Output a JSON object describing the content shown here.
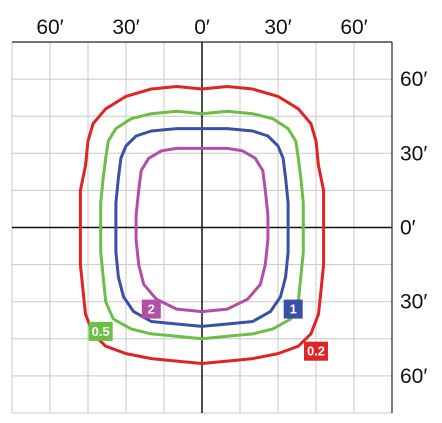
{
  "chart_data": {
    "type": "line",
    "title": "",
    "xlabel": "",
    "ylabel": "",
    "xlim": [
      -75,
      75
    ],
    "ylim": [
      -75,
      75
    ],
    "grid": true,
    "x_ticks": [
      {
        "value": -60,
        "label": "60′"
      },
      {
        "value": -30,
        "label": "30′"
      },
      {
        "value": 0,
        "label": "0′"
      },
      {
        "value": 30,
        "label": "30′"
      },
      {
        "value": 60,
        "label": "60′"
      }
    ],
    "y_ticks": [
      {
        "value": 60,
        "label": "60′"
      },
      {
        "value": 30,
        "label": "30′"
      },
      {
        "value": 0,
        "label": "0′"
      },
      {
        "value": -30,
        "label": "30′"
      },
      {
        "value": -60,
        "label": "60′"
      }
    ],
    "series": [
      {
        "label": "0.2",
        "color": "#e02424",
        "points": [
          [
            0,
            56
          ],
          [
            10,
            57
          ],
          [
            20,
            56
          ],
          [
            30,
            53
          ],
          [
            38,
            48
          ],
          [
            43,
            42
          ],
          [
            45,
            35
          ],
          [
            46,
            25
          ],
          [
            48,
            15
          ],
          [
            48,
            0
          ],
          [
            48,
            -15
          ],
          [
            47,
            -25
          ],
          [
            46,
            -35
          ],
          [
            43,
            -43
          ],
          [
            38,
            -48
          ],
          [
            30,
            -51
          ],
          [
            20,
            -53
          ],
          [
            10,
            -54
          ],
          [
            0,
            -55
          ],
          [
            -10,
            -54
          ],
          [
            -20,
            -53
          ],
          [
            -30,
            -51
          ],
          [
            -38,
            -48
          ],
          [
            -43,
            -43
          ],
          [
            -46,
            -35
          ],
          [
            -47,
            -25
          ],
          [
            -48,
            -15
          ],
          [
            -48,
            0
          ],
          [
            -48,
            15
          ],
          [
            -46,
            25
          ],
          [
            -45,
            35
          ],
          [
            -43,
            42
          ],
          [
            -38,
            48
          ],
          [
            -30,
            53
          ],
          [
            -20,
            56
          ],
          [
            -10,
            57
          ]
        ]
      },
      {
        "label": "0.5",
        "color": "#6cbf45",
        "points": [
          [
            0,
            46
          ],
          [
            10,
            47
          ],
          [
            20,
            46
          ],
          [
            28,
            44
          ],
          [
            34,
            40
          ],
          [
            37,
            35
          ],
          [
            38,
            28
          ],
          [
            39,
            20
          ],
          [
            40,
            10
          ],
          [
            40,
            0
          ],
          [
            40,
            -10
          ],
          [
            39,
            -20
          ],
          [
            38,
            -30
          ],
          [
            35,
            -37
          ],
          [
            28,
            -41
          ],
          [
            20,
            -43
          ],
          [
            10,
            -44
          ],
          [
            0,
            -45
          ],
          [
            -10,
            -44
          ],
          [
            -20,
            -43
          ],
          [
            -28,
            -41
          ],
          [
            -35,
            -37
          ],
          [
            -38,
            -30
          ],
          [
            -39,
            -20
          ],
          [
            -40,
            -10
          ],
          [
            -40,
            0
          ],
          [
            -40,
            10
          ],
          [
            -39,
            20
          ],
          [
            -38,
            28
          ],
          [
            -37,
            35
          ],
          [
            -34,
            40
          ],
          [
            -28,
            44
          ],
          [
            -20,
            46
          ],
          [
            -10,
            47
          ]
        ]
      },
      {
        "label": "1",
        "color": "#3a51a3",
        "points": [
          [
            0,
            40
          ],
          [
            10,
            40
          ],
          [
            20,
            39
          ],
          [
            26,
            37
          ],
          [
            30,
            33
          ],
          [
            32,
            28
          ],
          [
            33,
            20
          ],
          [
            34,
            10
          ],
          [
            34,
            0
          ],
          [
            34,
            -10
          ],
          [
            33,
            -20
          ],
          [
            31,
            -28
          ],
          [
            27,
            -34
          ],
          [
            20,
            -38
          ],
          [
            10,
            -39
          ],
          [
            0,
            -40
          ],
          [
            -10,
            -39
          ],
          [
            -20,
            -38
          ],
          [
            -27,
            -34
          ],
          [
            -31,
            -28
          ],
          [
            -33,
            -20
          ],
          [
            -34,
            -10
          ],
          [
            -34,
            0
          ],
          [
            -34,
            10
          ],
          [
            -33,
            20
          ],
          [
            -32,
            28
          ],
          [
            -30,
            33
          ],
          [
            -26,
            37
          ],
          [
            -20,
            39
          ],
          [
            -10,
            40
          ]
        ]
      },
      {
        "label": "2",
        "color": "#b14fa7",
        "points": [
          [
            0,
            32
          ],
          [
            10,
            32
          ],
          [
            16,
            31
          ],
          [
            21,
            28
          ],
          [
            24,
            23
          ],
          [
            25,
            15
          ],
          [
            26,
            5
          ],
          [
            26,
            -5
          ],
          [
            25,
            -15
          ],
          [
            23,
            -23
          ],
          [
            18,
            -29
          ],
          [
            10,
            -33
          ],
          [
            0,
            -34
          ],
          [
            -10,
            -33
          ],
          [
            -18,
            -29
          ],
          [
            -23,
            -23
          ],
          [
            -25,
            -15
          ],
          [
            -26,
            -5
          ],
          [
            -26,
            5
          ],
          [
            -25,
            15
          ],
          [
            -24,
            23
          ],
          [
            -21,
            28
          ],
          [
            -16,
            31
          ],
          [
            -10,
            32
          ]
        ]
      }
    ],
    "labels": [
      {
        "text": "2",
        "x": -20,
        "y": -33,
        "color": "#b14fa7"
      },
      {
        "text": "1",
        "x": 36,
        "y": -33,
        "color": "#3a51a3"
      },
      {
        "text": "0.5",
        "x": -40,
        "y": -42,
        "color": "#6cbf45"
      },
      {
        "text": "0.2",
        "x": 45,
        "y": -50,
        "color": "#e02424"
      }
    ]
  }
}
